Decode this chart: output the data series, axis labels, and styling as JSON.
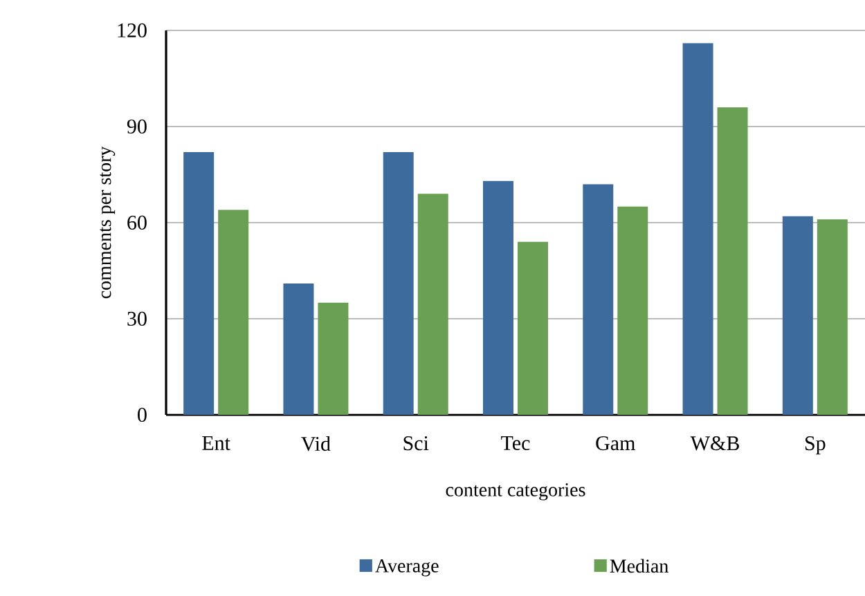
{
  "chart_data": {
    "type": "bar",
    "xlabel": "content categories",
    "ylabel": "comments per story",
    "categories": [
      "Ent",
      "Vid",
      "Sci",
      "Tec",
      "Gam",
      "W&B",
      "Sp"
    ],
    "series": [
      {
        "name": "Average",
        "color": "#3e6b9e",
        "values": [
          82,
          41,
          82,
          73,
          72,
          116,
          62
        ]
      },
      {
        "name": "Median",
        "color": "#6aa054",
        "values": [
          64,
          35,
          69,
          54,
          65,
          96,
          61
        ]
      }
    ],
    "ylim": [
      0,
      120
    ],
    "yticks": [
      0,
      30,
      60,
      90,
      120
    ],
    "grid": "y",
    "legend": "bottom"
  }
}
